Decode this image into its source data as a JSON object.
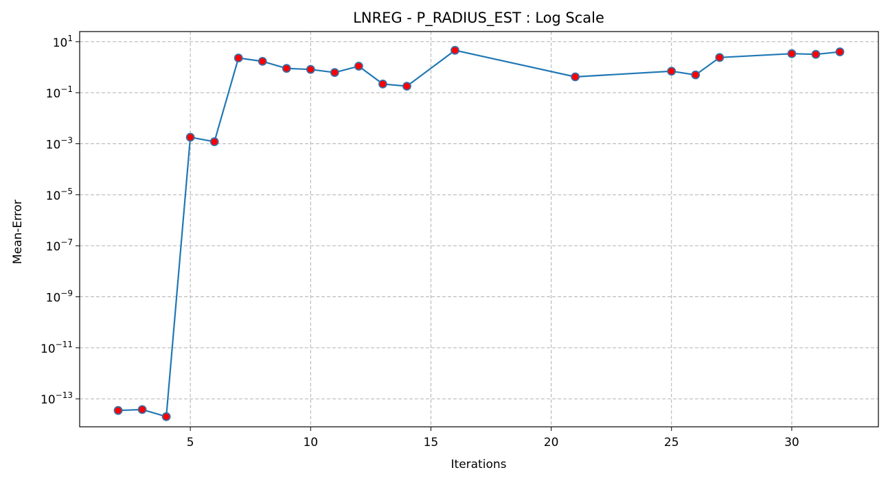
{
  "chart_data": {
    "type": "line",
    "title": "LNREG - P_RADIUS_EST : Log Scale",
    "xlabel": "Iterations",
    "ylabel": "Mean-Error",
    "yscale": "log",
    "grid": true,
    "xlim": [
      0.4,
      33.6
    ],
    "ylim": [
      8e-15,
      25
    ],
    "xticks": [
      5,
      10,
      15,
      20,
      25,
      30
    ],
    "yticks": [
      {
        "exp": 1,
        "base": "10",
        "sup": "1"
      },
      {
        "exp": -1,
        "base": "10",
        "sup": "−1"
      },
      {
        "exp": -3,
        "base": "10",
        "sup": "−3"
      },
      {
        "exp": -5,
        "base": "10",
        "sup": "−5"
      },
      {
        "exp": -7,
        "base": "10",
        "sup": "−7"
      },
      {
        "exp": -9,
        "base": "10",
        "sup": "−9"
      },
      {
        "exp": -11,
        "base": "10",
        "sup": "−11"
      },
      {
        "exp": -13,
        "base": "10",
        "sup": "−13"
      }
    ],
    "series": [
      {
        "x": [
          2,
          3,
          4,
          5,
          6,
          7,
          8,
          9,
          10,
          11,
          12,
          13,
          14,
          16,
          21,
          25,
          26,
          27,
          30,
          31,
          32
        ],
        "y": [
          3.5e-14,
          3.8e-14,
          2e-14,
          0.0018,
          0.0012,
          2.3,
          1.7,
          0.9,
          0.82,
          0.62,
          1.1,
          0.22,
          0.18,
          4.6,
          0.42,
          0.7,
          0.5,
          2.4,
          3.4,
          3.2,
          4.0
        ],
        "line_color": "#1f77b4",
        "marker_color": "#ff0000"
      }
    ]
  }
}
